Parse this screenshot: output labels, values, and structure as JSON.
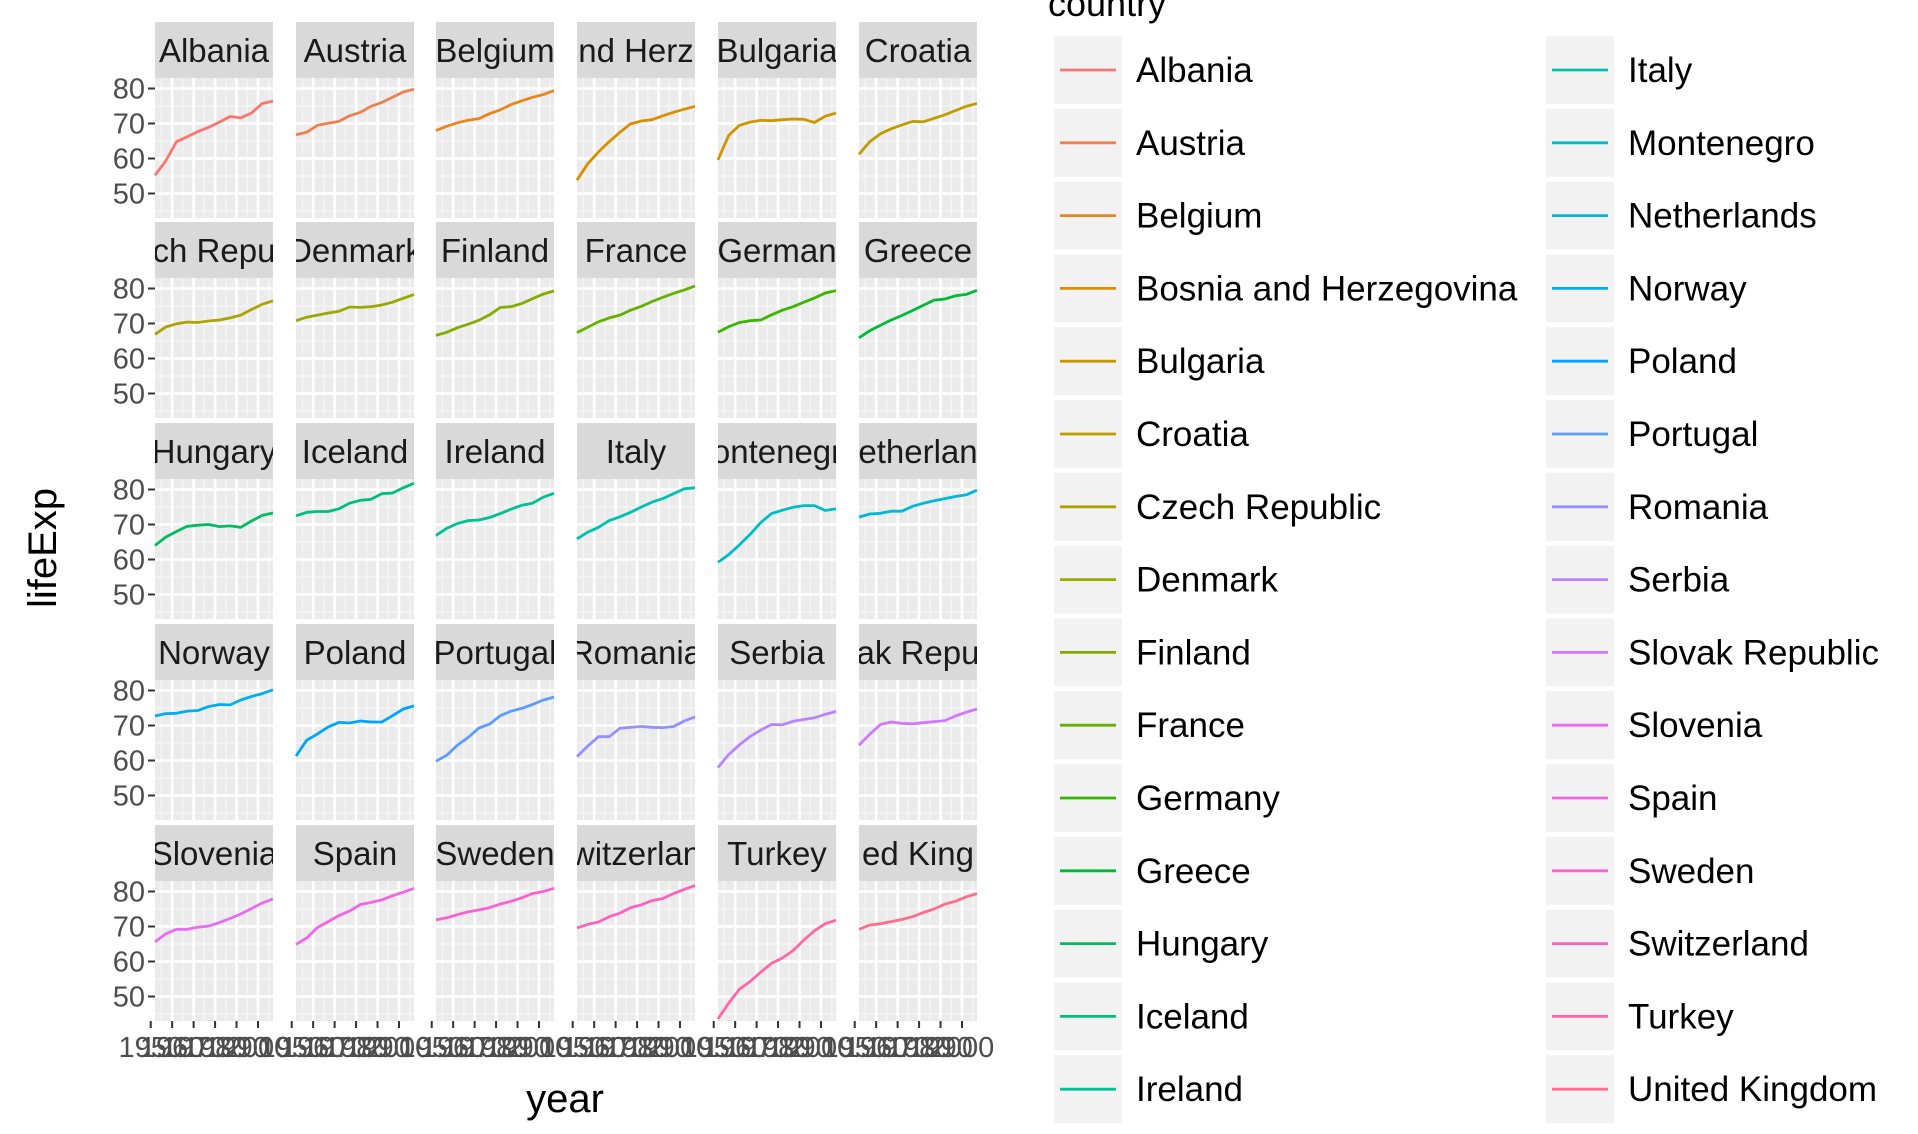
{
  "chart_data": {
    "type": "line",
    "layout": "facet_wrap",
    "facet_columns": 6,
    "xlabel": "year",
    "ylabel": "lifeExp",
    "legend_title": "country",
    "legend_position": "right",
    "xlim": [
      1952,
      2007
    ],
    "ylim": [
      43,
      83
    ],
    "x_ticks": [
      1950,
      1960,
      1970,
      1980,
      1990,
      2000
    ],
    "y_ticks": [
      50,
      60,
      70,
      80
    ],
    "grid": true,
    "x": [
      1952,
      1957,
      1962,
      1967,
      1972,
      1977,
      1982,
      1987,
      1992,
      1997,
      2002,
      2007
    ],
    "series": [
      {
        "name": "Albania",
        "label": "Albania",
        "color": "#F8766D",
        "values": [
          55.2,
          59.3,
          64.8,
          66.2,
          67.7,
          68.9,
          70.4,
          72.0,
          71.6,
          73.0,
          75.7,
          76.4
        ]
      },
      {
        "name": "Austria",
        "label": "Austria",
        "color": "#F07F4E",
        "values": [
          66.8,
          67.5,
          69.5,
          70.1,
          70.6,
          72.2,
          73.2,
          74.9,
          76.0,
          77.5,
          79.0,
          79.8
        ]
      },
      {
        "name": "Belgium",
        "label": "Belgium",
        "color": "#E7861B",
        "values": [
          68.0,
          69.2,
          70.2,
          70.9,
          71.4,
          72.8,
          73.9,
          75.4,
          76.5,
          77.5,
          78.3,
          79.4
        ]
      },
      {
        "name": "Bosnia and Herzegovina",
        "label": "nd Herz",
        "color": "#DB8E00",
        "values": [
          53.8,
          58.5,
          61.9,
          64.8,
          67.5,
          69.9,
          70.7,
          71.1,
          72.2,
          73.2,
          74.1,
          74.9
        ]
      },
      {
        "name": "Bulgaria",
        "label": "Bulgaria",
        "color": "#CE9500",
        "values": [
          59.6,
          66.6,
          69.5,
          70.4,
          70.9,
          70.8,
          71.1,
          71.3,
          71.2,
          70.3,
          72.1,
          73.0
        ]
      },
      {
        "name": "Croatia",
        "label": "Croatia",
        "color": "#BF9C00",
        "values": [
          61.2,
          64.8,
          67.1,
          68.5,
          69.6,
          70.6,
          70.5,
          71.5,
          72.5,
          73.7,
          74.9,
          75.7
        ]
      },
      {
        "name": "Czech Republic",
        "label": "ch Repu",
        "color": "#AEA200",
        "values": [
          66.9,
          69.0,
          69.9,
          70.4,
          70.3,
          70.7,
          71.0,
          71.6,
          72.4,
          74.0,
          75.5,
          76.5
        ]
      },
      {
        "name": "Denmark",
        "label": "Denmark",
        "color": "#9AA800",
        "values": [
          70.8,
          71.8,
          72.4,
          73.0,
          73.5,
          74.7,
          74.6,
          74.8,
          75.3,
          76.1,
          77.2,
          78.3
        ]
      },
      {
        "name": "Finland",
        "label": "Finland",
        "color": "#82AD00",
        "values": [
          66.6,
          67.5,
          68.8,
          69.8,
          70.9,
          72.5,
          74.6,
          74.8,
          75.7,
          77.1,
          78.4,
          79.3
        ]
      },
      {
        "name": "France",
        "label": "France",
        "color": "#64B200",
        "values": [
          67.4,
          68.9,
          70.5,
          71.6,
          72.4,
          73.8,
          74.9,
          76.3,
          77.5,
          78.6,
          79.6,
          80.7
        ]
      },
      {
        "name": "Germany",
        "label": "German",
        "color": "#39B600",
        "values": [
          67.5,
          69.1,
          70.3,
          70.8,
          71.0,
          72.5,
          73.8,
          74.8,
          76.1,
          77.3,
          78.7,
          79.4
        ]
      },
      {
        "name": "Greece",
        "label": "Greece",
        "color": "#00BA38",
        "values": [
          65.9,
          67.9,
          69.5,
          71.0,
          72.3,
          73.7,
          75.2,
          76.7,
          77.0,
          77.9,
          78.3,
          79.5
        ]
      },
      {
        "name": "Hungary",
        "label": "Hungary",
        "color": "#00BD5F",
        "values": [
          64.0,
          66.4,
          68.0,
          69.5,
          69.8,
          70.0,
          69.4,
          69.6,
          69.2,
          71.0,
          72.6,
          73.3
        ]
      },
      {
        "name": "Iceland",
        "label": "Iceland",
        "color": "#00BF7D",
        "values": [
          72.5,
          73.5,
          73.7,
          73.7,
          74.5,
          76.1,
          76.9,
          77.2,
          78.8,
          79.0,
          80.5,
          81.8
        ]
      },
      {
        "name": "Ireland",
        "label": "Ireland",
        "color": "#00C097",
        "values": [
          66.9,
          68.9,
          70.3,
          71.1,
          71.3,
          72.0,
          73.1,
          74.4,
          75.5,
          76.1,
          77.8,
          78.9
        ]
      },
      {
        "name": "Italy",
        "label": "Italy",
        "color": "#00C0AF",
        "values": [
          65.9,
          67.8,
          69.2,
          71.1,
          72.2,
          73.5,
          75.0,
          76.4,
          77.4,
          78.8,
          80.2,
          80.5
        ]
      },
      {
        "name": "Montenegro",
        "label": "ontenegr",
        "color": "#00BCC6",
        "values": [
          59.2,
          61.4,
          64.2,
          67.2,
          70.6,
          73.1,
          74.1,
          74.9,
          75.4,
          75.4,
          74.0,
          74.5
        ]
      },
      {
        "name": "Netherlands",
        "label": "etherlan",
        "color": "#00B8DB",
        "values": [
          72.1,
          73.0,
          73.2,
          73.8,
          73.8,
          75.2,
          76.1,
          76.8,
          77.4,
          78.0,
          78.5,
          79.8
        ]
      },
      {
        "name": "Norway",
        "label": "Norway",
        "color": "#00B0EE",
        "values": [
          72.7,
          73.4,
          73.5,
          74.1,
          74.3,
          75.4,
          76.0,
          75.9,
          77.3,
          78.3,
          79.1,
          80.2
        ]
      },
      {
        "name": "Poland",
        "label": "Poland",
        "color": "#00A5FF",
        "values": [
          61.3,
          65.8,
          67.6,
          69.6,
          70.9,
          70.7,
          71.3,
          71.0,
          71.0,
          72.8,
          74.7,
          75.6
        ]
      },
      {
        "name": "Portugal",
        "label": "Portugal",
        "color": "#5C9CFF",
        "values": [
          59.8,
          61.5,
          64.4,
          66.6,
          69.3,
          70.4,
          72.8,
          74.1,
          74.9,
          76.0,
          77.3,
          78.1
        ]
      },
      {
        "name": "Romania",
        "label": "Romania",
        "color": "#9590FF",
        "values": [
          61.1,
          64.1,
          66.8,
          66.8,
          69.2,
          69.5,
          69.7,
          69.5,
          69.4,
          69.7,
          71.3,
          72.5
        ]
      },
      {
        "name": "Serbia",
        "label": "Serbia",
        "color": "#B983FF",
        "values": [
          58.0,
          61.7,
          64.5,
          66.9,
          68.7,
          70.3,
          70.2,
          71.2,
          71.7,
          72.2,
          73.2,
          74.0
        ]
      },
      {
        "name": "Slovak Republic",
        "label": "ak Repu",
        "color": "#D376FF",
        "values": [
          64.4,
          67.5,
          70.3,
          71.0,
          70.6,
          70.5,
          70.8,
          71.1,
          71.4,
          72.7,
          73.8,
          74.7
        ]
      },
      {
        "name": "Slovenia",
        "label": "Slovenia",
        "color": "#E76BF3",
        "values": [
          65.6,
          67.9,
          69.2,
          69.2,
          69.8,
          70.1,
          71.1,
          72.3,
          73.6,
          75.1,
          76.7,
          77.9
        ]
      },
      {
        "name": "Spain",
        "label": "Spain",
        "color": "#F564E3",
        "values": [
          64.9,
          66.7,
          69.7,
          71.4,
          73.1,
          74.4,
          76.3,
          76.9,
          77.6,
          78.8,
          79.8,
          80.9
        ]
      },
      {
        "name": "Sweden",
        "label": "Sweden",
        "color": "#FD61D1",
        "values": [
          71.9,
          72.5,
          73.4,
          74.2,
          74.7,
          75.4,
          76.4,
          77.2,
          78.2,
          79.4,
          80.0,
          80.9
        ]
      },
      {
        "name": "Switzerland",
        "label": "witzerlan",
        "color": "#FF62BC",
        "values": [
          69.6,
          70.6,
          71.3,
          72.8,
          73.8,
          75.4,
          76.2,
          77.4,
          78.0,
          79.4,
          80.6,
          81.7
        ]
      },
      {
        "name": "Turkey",
        "label": "Turkey",
        "color": "#FF67A4",
        "values": [
          43.6,
          48.1,
          52.1,
          54.3,
          57.0,
          59.5,
          61.0,
          63.1,
          66.1,
          68.8,
          70.8,
          71.8
        ]
      },
      {
        "name": "United Kingdom",
        "label": "ed King",
        "color": "#FE6E8A",
        "values": [
          69.2,
          70.4,
          70.8,
          71.4,
          72.0,
          72.8,
          74.0,
          75.0,
          76.4,
          77.2,
          78.5,
          79.4
        ]
      }
    ]
  }
}
